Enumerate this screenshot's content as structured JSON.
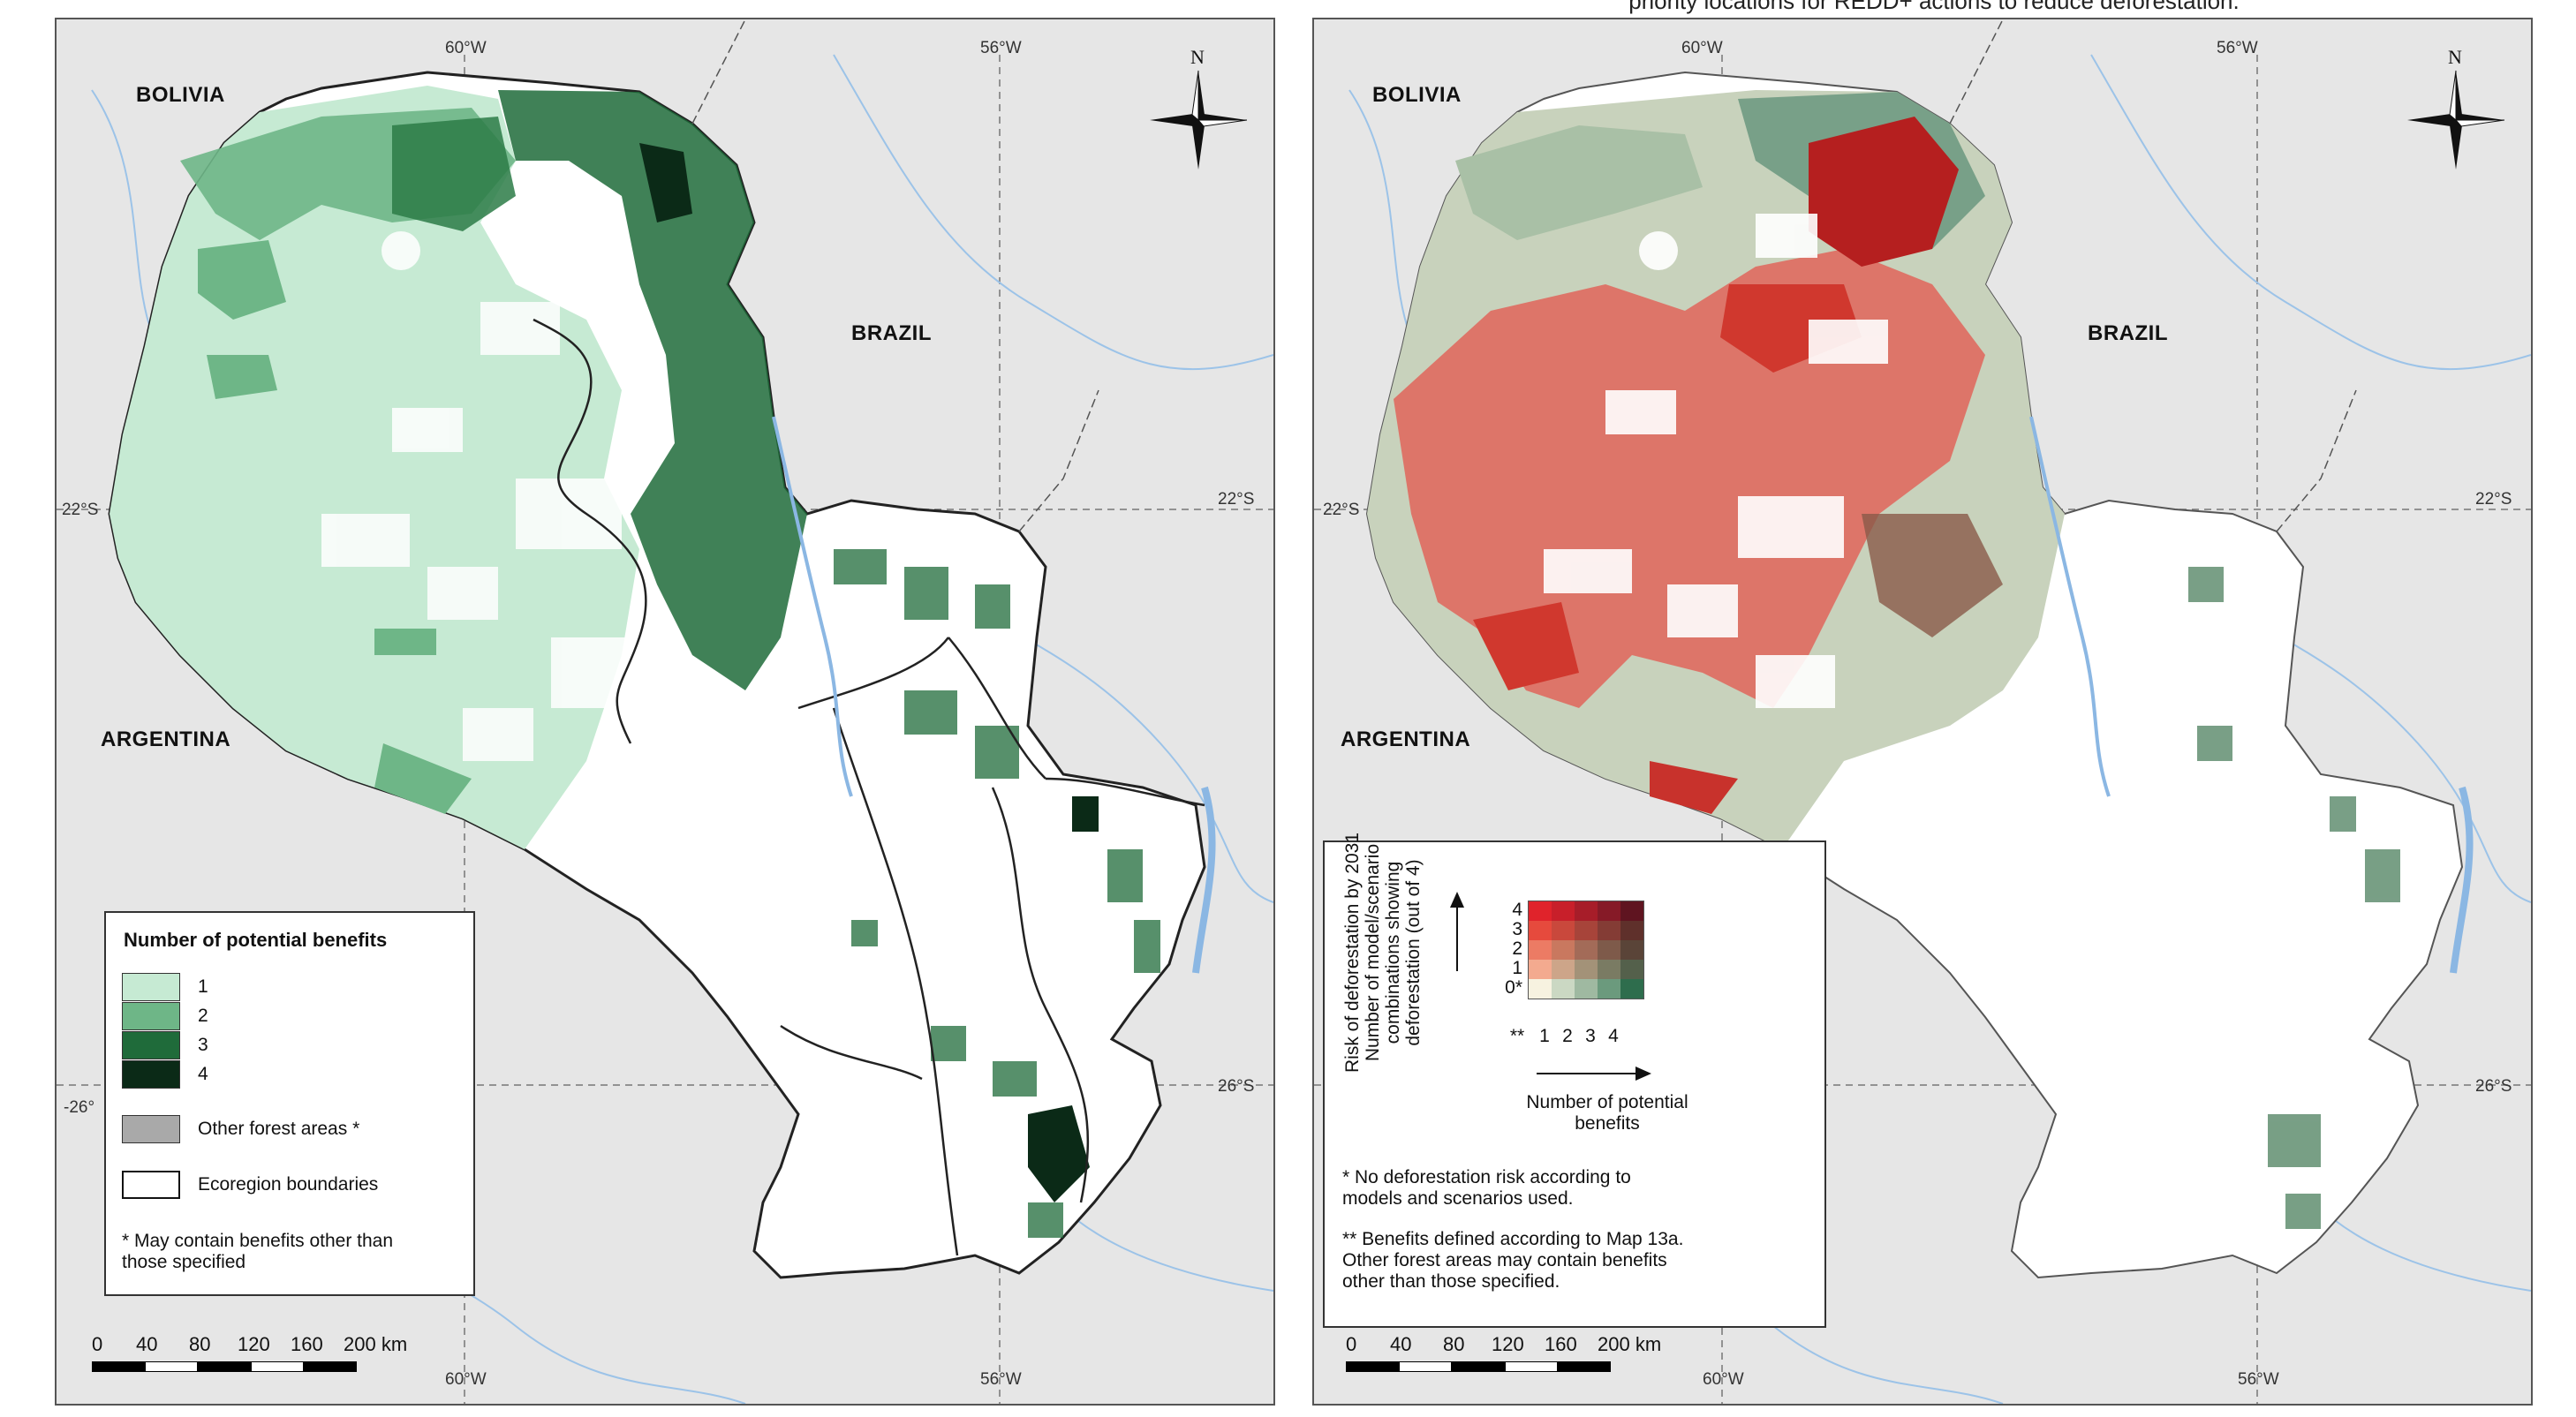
{
  "partial_title": "priority locations for REDD+ actions to reduce deforestation.",
  "colors": {
    "benefit_1": "#c6ead3",
    "benefit_2": "#6eb687",
    "benefit_3": "#1f6b3a",
    "benefit_4": "#0b2a17",
    "other_forest": "#a9a9a9",
    "background": "#e6e6e6",
    "water": "#b4d3f0",
    "risk_high": "#d93a32"
  },
  "left_map": {
    "countries": {
      "bolivia": "BOLIVIA",
      "brazil": "BRAZIL",
      "argentina": "ARGENTINA"
    },
    "coords": {
      "top_60w": "60°W",
      "top_56w": "56°W",
      "left_22s": "22°S",
      "right_22s": "22°S",
      "left_26": "-26°",
      "right_26s": "26°S",
      "bottom_60w": "60°W",
      "bottom_56w": "56°W"
    },
    "north": "N",
    "legend": {
      "title": "Number of potential benefits",
      "items": [
        "1",
        "2",
        "3",
        "4"
      ],
      "other_forest": "Other forest areas *",
      "ecoregion": "Ecoregion boundaries",
      "footnote_1": "* May contain benefits other than",
      "footnote_2": "those specified"
    },
    "scale": {
      "labels": [
        "0",
        "40",
        "80",
        "120",
        "160",
        "200 km"
      ]
    }
  },
  "right_map": {
    "countries": {
      "bolivia": "BOLIVIA",
      "brazil": "BRAZIL",
      "argentina": "ARGENTINA"
    },
    "coords": {
      "top_60w": "60°W",
      "top_56w": "56°W",
      "left_22s": "22°S",
      "right_22s": "22°S",
      "right_26s": "26°S",
      "bottom_60w": "60°W",
      "bottom_56w": "56°W"
    },
    "north": "N",
    "legend": {
      "y_axis_1": "Risk of deforestation by 2031",
      "y_axis_2": "Number of model/scenario",
      "y_axis_3": "combinations showing",
      "y_axis_4": "deforestation (out of 4)",
      "row_labels": [
        "4",
        "3",
        "2",
        "1",
        "0*"
      ],
      "col_labels": [
        "**",
        "1",
        "2",
        "3",
        "4"
      ],
      "x_axis_1": "Number of potential",
      "x_axis_2": "benefits",
      "note1_1": "* No deforestation risk according to",
      "note1_2": "models and scenarios used.",
      "note2_1": "** Benefits defined according to Map 13a.",
      "note2_2": "Other forest areas may contain benefits",
      "note2_3": "other than those specified."
    },
    "scale": {
      "labels": [
        "0",
        "40",
        "80",
        "120",
        "160",
        "200 km"
      ]
    }
  }
}
